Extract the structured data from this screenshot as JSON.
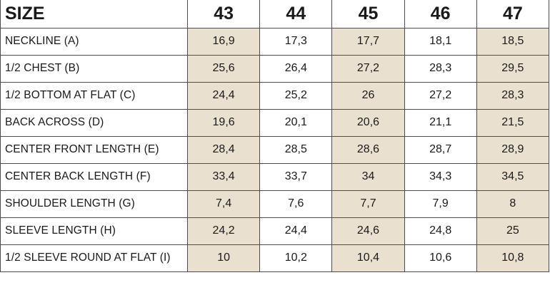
{
  "table": {
    "header": {
      "label": "SIZE",
      "sizes": [
        "43",
        "44",
        "45",
        "46",
        "47"
      ]
    },
    "rows": [
      {
        "label": "NECKLINE (A)",
        "values": [
          "16,9",
          "17,3",
          "17,7",
          "18,1",
          "18,5"
        ]
      },
      {
        "label": "1/2 CHEST (B)",
        "values": [
          "25,6",
          "26,4",
          "27,2",
          "28,3",
          "29,5"
        ]
      },
      {
        "label": "1/2 BOTTOM AT FLAT (C)",
        "values": [
          "24,4",
          "25,2",
          "26",
          "27,2",
          "28,3"
        ]
      },
      {
        "label": "BACK ACROSS (D)",
        "values": [
          "19,6",
          "20,1",
          "20,6",
          "21,1",
          "21,5"
        ]
      },
      {
        "label": "CENTER FRONT LENGTH (E)",
        "values": [
          "28,4",
          "28,5",
          "28,6",
          "28,7",
          "28,9"
        ]
      },
      {
        "label": "CENTER BACK LENGTH (F)",
        "values": [
          "33,4",
          "33,7",
          "34",
          "34,3",
          "34,5"
        ]
      },
      {
        "label": "SHOULDER LENGTH (G)",
        "values": [
          "7,4",
          "7,6",
          "7,7",
          "7,9",
          "8"
        ]
      },
      {
        "label": "SLEEVE LENGTH (H)",
        "values": [
          "24,2",
          "24,4",
          "24,6",
          "24,8",
          "25"
        ]
      },
      {
        "label": "1/2 SLEEVE ROUND AT FLAT (I)",
        "values": [
          "10",
          "10,2",
          "10,4",
          "10,6",
          "10,8"
        ]
      }
    ],
    "shaded_column_color": "#e9e0d0",
    "border_color": "#4d4d4d"
  }
}
